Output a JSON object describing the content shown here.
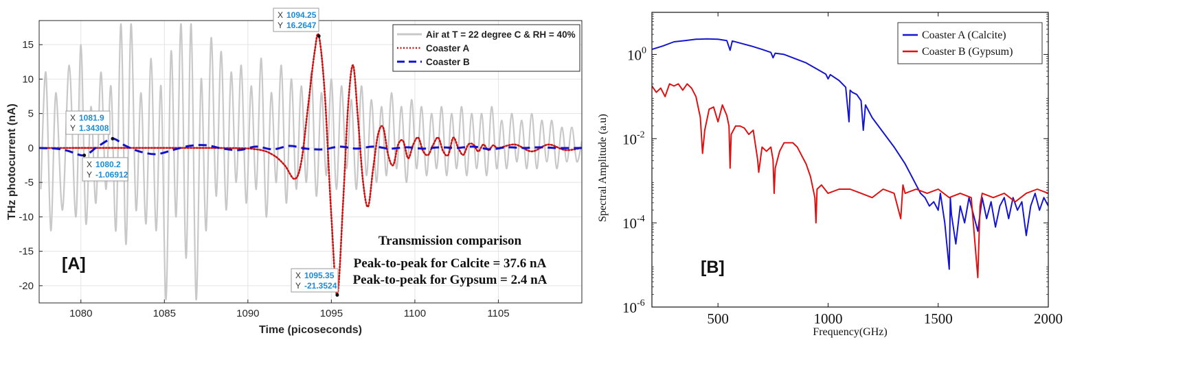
{
  "chart_data": [
    {
      "panel_tag": "[A]",
      "type": "line",
      "xlabel": "Time (picoseconds)",
      "ylabel": "THz photocurrent (nA)",
      "xlim": [
        1077.5,
        1110
      ],
      "ylim": [
        -22.5,
        18.5
      ],
      "xticks": [
        1080,
        1085,
        1090,
        1095,
        1100,
        1105
      ],
      "yticks": [
        -20,
        -15,
        -10,
        -5,
        0,
        5,
        10,
        15
      ],
      "grid": true,
      "legend_position": "top-right",
      "series": [
        {
          "name": "Air at T = 22 degree C & RH = 40%",
          "color": "#c8c8c8",
          "style": "solid",
          "x": [
            1077.6,
            1077.9,
            1078.2,
            1078.5,
            1078.9,
            1079.3,
            1079.7,
            1080.0,
            1080.3,
            1080.6,
            1080.9,
            1081.2,
            1081.5,
            1081.8,
            1082.1,
            1082.4,
            1082.7,
            1083.0,
            1083.3,
            1083.6,
            1083.9,
            1084.2,
            1084.5,
            1084.8,
            1085.1,
            1085.4,
            1085.7,
            1086.0,
            1086.3,
            1086.6,
            1086.9,
            1087.2,
            1087.5,
            1087.8,
            1088.1,
            1088.4,
            1088.7,
            1089.0,
            1089.3,
            1089.6,
            1089.9,
            1090.2,
            1090.5,
            1090.8,
            1091.1,
            1091.4,
            1091.7,
            1092.0,
            1092.3,
            1092.6,
            1092.9,
            1093.2,
            1093.5,
            1093.8,
            1094.1,
            1094.4,
            1094.7,
            1095.0,
            1095.3,
            1095.6,
            1095.9,
            1096.2,
            1096.5,
            1096.8,
            1097.1,
            1097.4,
            1097.7,
            1098.0,
            1098.3,
            1098.6,
            1098.9,
            1099.2,
            1099.5,
            1099.8,
            1100.1,
            1100.4,
            1100.7,
            1101.0,
            1101.3,
            1101.6,
            1101.9,
            1102.2,
            1102.5,
            1102.8,
            1103.1,
            1103.4,
            1103.7,
            1104.0,
            1104.3,
            1104.6,
            1104.9,
            1105.2,
            1105.5,
            1105.8,
            1106.1,
            1106.4,
            1106.7,
            1107.0,
            1107.3,
            1107.6,
            1107.9,
            1108.2,
            1108.5,
            1108.8,
            1109.1,
            1109.4,
            1109.7,
            1110.0
          ],
          "y": [
            -6,
            11,
            -12,
            8,
            -9,
            12,
            -10,
            15,
            -11,
            6,
            -8,
            11,
            -6,
            9,
            -12,
            18,
            -14,
            18,
            -9,
            8,
            -11,
            13,
            -12,
            9,
            -22,
            14,
            -10,
            18,
            -16,
            18,
            -22,
            10,
            -12,
            16,
            -7,
            14,
            -9,
            11,
            -5,
            12,
            -8,
            9,
            -6,
            13,
            -10,
            8,
            -5,
            12,
            -8,
            10,
            -6,
            9,
            -5,
            11,
            -7,
            8,
            -4,
            10,
            -6,
            9,
            -3,
            7,
            -6,
            9,
            -4,
            7,
            -5,
            6,
            -4,
            8,
            -3,
            6,
            -5,
            7,
            -3,
            6,
            -4,
            5,
            -3,
            6,
            -4,
            5,
            -3,
            6,
            -4,
            5,
            -3,
            5,
            -4,
            6,
            -3,
            4,
            -3,
            5,
            -2,
            4,
            -3,
            5,
            -3,
            4,
            -2,
            4,
            -3,
            3,
            -2,
            3,
            -2,
            1
          ]
        },
        {
          "name": "Coaster A",
          "color": "#cc1111",
          "style": "dotted",
          "x": [
            1077.5,
            1088.0,
            1090.5,
            1091.5,
            1092.2,
            1092.8,
            1093.2,
            1093.6,
            1094.0,
            1094.25,
            1094.6,
            1095.0,
            1095.35,
            1095.7,
            1096.0,
            1096.3,
            1096.6,
            1096.9,
            1097.2,
            1097.5,
            1097.8,
            1098.1,
            1098.4,
            1098.7,
            1099.0,
            1099.3,
            1099.6,
            1099.9,
            1100.2,
            1100.5,
            1100.8,
            1101.1,
            1101.4,
            1101.7,
            1102.0,
            1102.3,
            1102.6,
            1102.9,
            1103.2,
            1103.5,
            1103.8,
            1104.1,
            1104.4,
            1104.7,
            1105.0,
            1106.0,
            1107.0,
            1108.0,
            1109.0,
            1110.0
          ],
          "y": [
            0,
            0,
            -0.2,
            -1.0,
            -2.5,
            -4.5,
            -2,
            6,
            14,
            16.26,
            8,
            -10,
            -21.35,
            -8,
            6,
            12,
            4,
            -5,
            -8.5,
            -3,
            2,
            3,
            -1,
            -2.5,
            0.5,
            1,
            -1.5,
            0.5,
            1.5,
            -0.5,
            -1,
            0.5,
            1.5,
            -0.5,
            -1,
            1.5,
            0,
            -1,
            0.5,
            0.5,
            -0.5,
            0.5,
            -0.3,
            0.4,
            0,
            0.5,
            -0.5,
            0.5,
            -0.3,
            0
          ]
        },
        {
          "name": "Coaster B",
          "color": "#1111cc",
          "style": "dashed",
          "x": [
            1077.5,
            1078.5,
            1079.2,
            1080.2,
            1081.0,
            1081.9,
            1082.6,
            1083.5,
            1084.5,
            1085.5,
            1086.5,
            1087.5,
            1088.5,
            1089.5,
            1090.5,
            1091.5,
            1092.5,
            1093.5,
            1094.5,
            1095.5,
            1096.5,
            1097.5,
            1098.5,
            1099.5,
            1100.5,
            1101.5,
            1102.5,
            1103.5,
            1104.5,
            1105.5,
            1106.5,
            1107.5,
            1108.5,
            1110.0
          ],
          "y": [
            0,
            -0.1,
            -0.4,
            -1.07,
            0.2,
            1.34,
            0.4,
            -0.5,
            -0.9,
            -0.3,
            0.3,
            0.4,
            -0.1,
            -0.3,
            0.2,
            -0.2,
            0.3,
            -0.1,
            -0.2,
            0.2,
            -0.1,
            0.2,
            -0.1,
            0.1,
            -0.1,
            0.1,
            0,
            0.2,
            -0.2,
            0.1,
            0,
            0.1,
            0,
            0
          ]
        }
      ],
      "datatips": [
        {
          "x": "1094.25",
          "y": "16.2647"
        },
        {
          "x": "1081.9",
          "y": "1.34308"
        },
        {
          "x": "1080.2",
          "y": "-1.06912"
        },
        {
          "x": "1095.35",
          "y": "-21.3524"
        }
      ],
      "annotations": [
        "Transmission comparison",
        "Peak-to-peak for Calcite = 37.6 nA",
        "Peak-to-peak for Gypsum = 2.4 nA"
      ]
    },
    {
      "panel_tag": "[B]",
      "type": "line",
      "xlabel": "Frequency(GHz)",
      "ylabel": "Spectral Amplitude (a.u)",
      "yscale": "log",
      "xlim": [
        200,
        2000
      ],
      "ylim_log10": [
        -6,
        1
      ],
      "xticks": [
        500,
        1000,
        1500,
        2000
      ],
      "ytick_bases": [
        "10",
        "10",
        "10",
        "10"
      ],
      "ytick_exponents": [
        "0",
        "-2",
        "-4",
        "-6"
      ],
      "ytick_values_log10": [
        0,
        -2,
        -4,
        -6
      ],
      "grid": false,
      "legend_position": "top-right",
      "series": [
        {
          "name": "Coaster A (Calcite)",
          "color": "#1515d0",
          "x": [
            200,
            250,
            300,
            350,
            400,
            450,
            500,
            540,
            555,
            565,
            600,
            650,
            700,
            740,
            750,
            760,
            800,
            850,
            900,
            950,
            990,
            1000,
            1010,
            1050,
            1080,
            1095,
            1100,
            1110,
            1130,
            1150,
            1160,
            1170,
            1200,
            1250,
            1300,
            1350,
            1380,
            1400,
            1420,
            1440,
            1460,
            1480,
            1500,
            1510,
            1530,
            1550,
            1555,
            1560,
            1580,
            1600,
            1620,
            1640,
            1660,
            1680,
            1700,
            1720,
            1740,
            1760,
            1780,
            1800,
            1820,
            1840,
            1860,
            1880,
            1900,
            1920,
            1940,
            1960,
            1980,
            2000
          ],
          "y": [
            0.12,
            0.2,
            0.3,
            0.33,
            0.36,
            0.37,
            0.36,
            0.33,
            0.1,
            0.32,
            0.27,
            0.2,
            0.12,
            0.05,
            -0.08,
            0.03,
            0.0,
            -0.1,
            -0.2,
            -0.35,
            -0.47,
            -0.58,
            -0.48,
            -0.62,
            -0.78,
            -1.6,
            -0.85,
            -0.9,
            -0.95,
            -1.1,
            -1.8,
            -1.2,
            -1.5,
            -1.85,
            -2.2,
            -2.6,
            -2.9,
            -3.1,
            -3.3,
            -3.4,
            -3.6,
            -3.5,
            -3.7,
            -3.3,
            -4.0,
            -5.1,
            -3.4,
            -3.8,
            -4.5,
            -3.6,
            -4.0,
            -3.4,
            -3.8,
            -4.2,
            -3.4,
            -3.9,
            -3.5,
            -4.1,
            -3.6,
            -3.4,
            -3.9,
            -3.4,
            -3.7,
            -3.5,
            -4.3,
            -3.6,
            -3.3,
            -3.7,
            -3.4,
            -3.6
          ]
        },
        {
          "name": "Coaster B (Gypsum)",
          "color": "#dd1111",
          "x": [
            200,
            220,
            240,
            260,
            280,
            300,
            320,
            340,
            360,
            380,
            400,
            420,
            430,
            440,
            460,
            480,
            500,
            520,
            540,
            550,
            555,
            560,
            580,
            600,
            620,
            640,
            660,
            680,
            685,
            700,
            720,
            740,
            750,
            755,
            760,
            780,
            800,
            820,
            840,
            860,
            880,
            900,
            920,
            940,
            945,
            950,
            970,
            1000,
            1050,
            1100,
            1150,
            1200,
            1250,
            1300,
            1330,
            1340,
            1350,
            1400,
            1450,
            1500,
            1550,
            1600,
            1650,
            1680,
            1690,
            1700,
            1750,
            1800,
            1850,
            1900,
            1950,
            2000
          ],
          "y": [
            -0.75,
            -0.9,
            -0.8,
            -1.0,
            -0.7,
            -0.75,
            -0.7,
            -0.85,
            -0.7,
            -0.8,
            -1.0,
            -1.5,
            -2.35,
            -1.8,
            -1.3,
            -1.25,
            -1.6,
            -1.2,
            -1.45,
            -1.7,
            -2.7,
            -1.9,
            -1.7,
            -1.7,
            -1.75,
            -1.9,
            -1.8,
            -2.5,
            -2.8,
            -2.2,
            -2.3,
            -2.2,
            -2.5,
            -3.3,
            -2.7,
            -2.3,
            -2.1,
            -2.1,
            -2.1,
            -2.2,
            -2.4,
            -2.6,
            -2.9,
            -3.4,
            -4.0,
            -3.2,
            -3.1,
            -3.3,
            -3.2,
            -3.2,
            -3.3,
            -3.4,
            -3.2,
            -3.3,
            -3.9,
            -3.1,
            -3.3,
            -3.2,
            -3.3,
            -3.2,
            -3.4,
            -3.3,
            -3.4,
            -5.3,
            -3.6,
            -3.3,
            -3.4,
            -3.3,
            -3.5,
            -3.3,
            -3.2,
            -3.3
          ]
        }
      ]
    }
  ]
}
